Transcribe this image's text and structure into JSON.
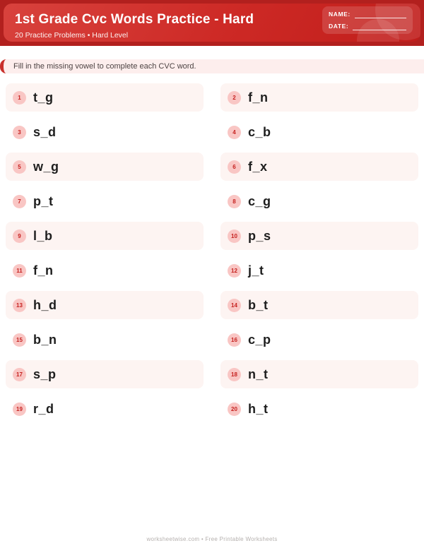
{
  "header": {
    "title": "1st Grade Cvc Words Practice - Hard",
    "subtitle": "20 Practice Problems • Hard Level",
    "name_label": "NAME:",
    "date_label": "DATE:"
  },
  "instruction": "Fill in the missing vowel to complete each CVC word.",
  "items": [
    {
      "num": "1",
      "word": "t_g"
    },
    {
      "num": "2",
      "word": "f_n"
    },
    {
      "num": "3",
      "word": "s_d"
    },
    {
      "num": "4",
      "word": "c_b"
    },
    {
      "num": "5",
      "word": "w_g"
    },
    {
      "num": "6",
      "word": "f_x"
    },
    {
      "num": "7",
      "word": "p_t"
    },
    {
      "num": "8",
      "word": "c_g"
    },
    {
      "num": "9",
      "word": "l_b"
    },
    {
      "num": "10",
      "word": "p_s"
    },
    {
      "num": "11",
      "word": "f_n"
    },
    {
      "num": "12",
      "word": "j_t"
    },
    {
      "num": "13",
      "word": "h_d"
    },
    {
      "num": "14",
      "word": "b_t"
    },
    {
      "num": "15",
      "word": "b_n"
    },
    {
      "num": "16",
      "word": "c_p"
    },
    {
      "num": "17",
      "word": "s_p"
    },
    {
      "num": "18",
      "word": "n_t"
    },
    {
      "num": "19",
      "word": "r_d"
    },
    {
      "num": "20",
      "word": "h_t"
    }
  ],
  "footer": "worksheetwise.com • Free Printable Worksheets",
  "colors": {
    "header_outer": "#b2201e",
    "header_inner": "#cd2925",
    "accent_red": "#c9302c",
    "banner_bg": "#fdeeed",
    "row_highlight_bg": "#fdf4f2",
    "badge_bg": "#f9c6c4",
    "badge_text": "#c5201e",
    "word_text": "#1e1e1e",
    "footer_text": "#b5b0ae"
  }
}
